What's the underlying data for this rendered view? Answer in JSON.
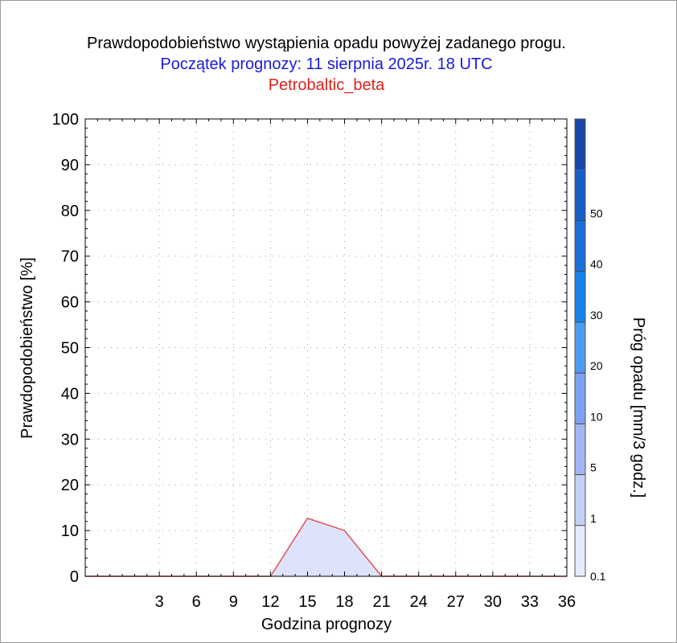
{
  "header": {
    "title": "Prawdopodobieństwo wystąpienia opadu powyżej zadanego progu.",
    "subtitle": "Początek prognozy: 11 sierpnia 2025r. 18 UTC",
    "station": "Petrobaltic_beta"
  },
  "chart_data": {
    "type": "area",
    "title": "Prawdopodobieństwo wystąpienia opadu powyżej zadanego progu.",
    "xlabel": "Godzina prognozy",
    "ylabel": "Prawdopodobieństwo [%]",
    "xlim": [
      -3,
      36
    ],
    "ylim": [
      0,
      100
    ],
    "xticks": [
      3,
      6,
      9,
      12,
      15,
      18,
      21,
      24,
      27,
      30,
      33,
      36
    ],
    "yticks": [
      0,
      10,
      20,
      30,
      40,
      50,
      60,
      70,
      80,
      90,
      100
    ],
    "grid": true,
    "series": [
      {
        "threshold": "0.1",
        "color": "#dde3fb",
        "line_color": "#e05050",
        "x": [
          -3,
          0,
          3,
          6,
          9,
          12,
          15,
          18,
          21,
          24,
          27,
          30,
          33,
          36
        ],
        "values": [
          0,
          0,
          0,
          0,
          0,
          0,
          12.7,
          10,
          0,
          0,
          0,
          0,
          0,
          0
        ]
      }
    ],
    "colorbar": {
      "label": "Próg opadu [mm/3 godz.]",
      "tick_labels": [
        "0.1",
        "1",
        "5",
        "10",
        "20",
        "30",
        "40",
        "50"
      ],
      "colors": [
        "#e6ebfc",
        "#c5d0f7",
        "#a3b5f3",
        "#7ea0f0",
        "#4f9af0",
        "#1584ee",
        "#1a6fd8",
        "#1a5dc6",
        "#1747a8"
      ]
    }
  }
}
